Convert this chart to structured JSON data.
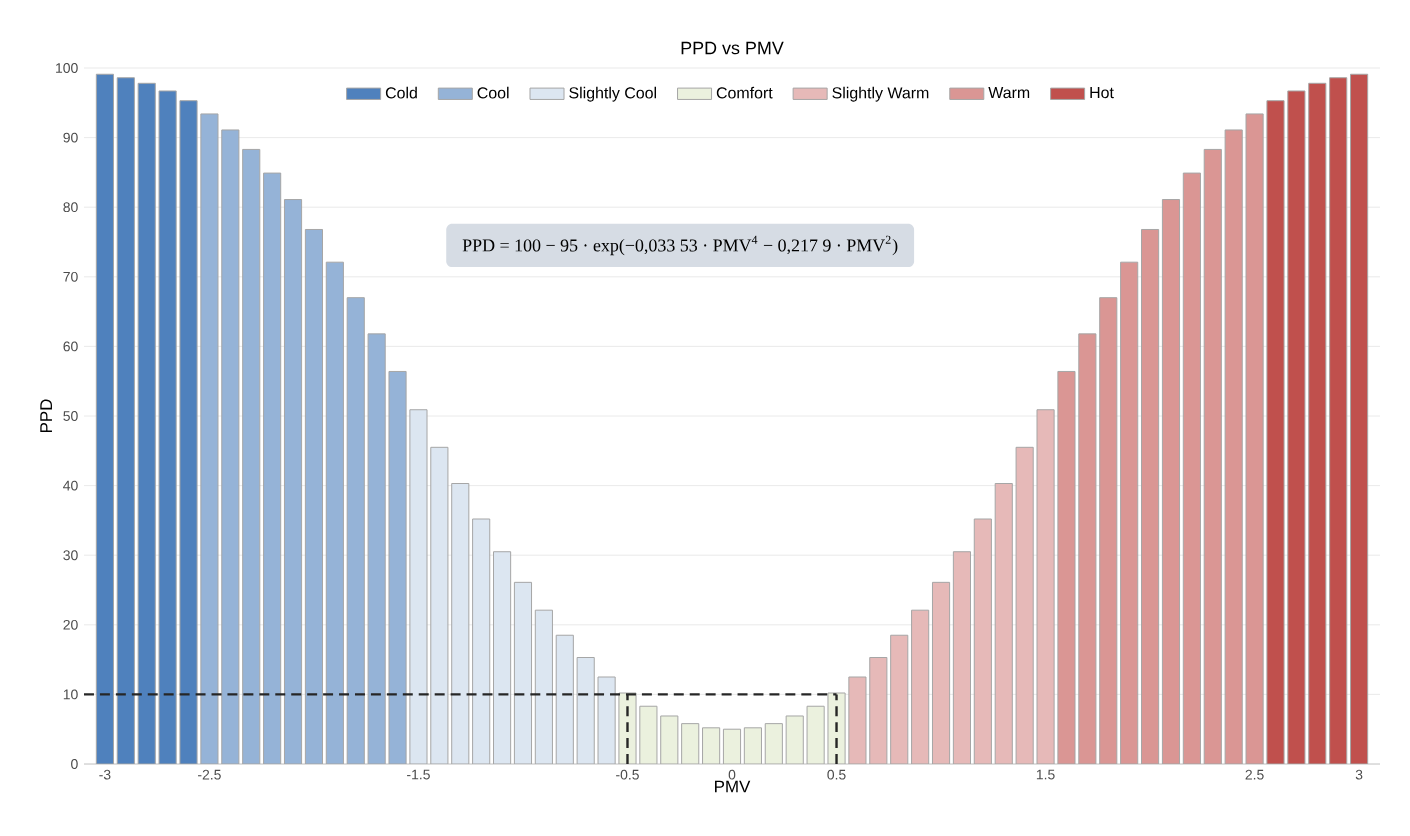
{
  "chart_data": {
    "type": "bar",
    "title": "PPD vs PMV",
    "xlabel": "PMV",
    "ylabel": "PPD",
    "annotations": [
      "PPD = 100 − 95 · exp(−0,033 53 · PMV$^{4}$ − 0,217 9 · PMV$^{2}$)"
    ],
    "series": [
      {
        "name": "Cold",
        "color": "#4f81bd",
        "x": [
          -3.0,
          -2.9,
          -2.8,
          -2.7,
          -2.6
        ],
        "values": [
          99.1,
          98.6,
          97.8,
          96.7,
          95.3
        ]
      },
      {
        "name": "Cool",
        "color": "#95b3d7",
        "x": [
          -2.5,
          -2.4,
          -2.3,
          -2.2,
          -2.1,
          -2.0,
          -1.9,
          -1.8,
          -1.7,
          -1.6
        ],
        "values": [
          93.4,
          91.1,
          88.3,
          84.9,
          81.1,
          76.8,
          72.1,
          67.0,
          61.8,
          56.4
        ]
      },
      {
        "name": "Slightly Cool",
        "color": "#dce6f1",
        "x": [
          -1.5,
          -1.4,
          -1.3,
          -1.2,
          -1.1,
          -1.0,
          -0.9,
          -0.8,
          -0.7,
          -0.6
        ],
        "values": [
          50.9,
          45.5,
          40.3,
          35.2,
          30.5,
          26.1,
          22.1,
          18.5,
          15.3,
          12.5
        ]
      },
      {
        "name": "Comfort",
        "color": "#ebf1de",
        "x": [
          -0.5,
          -0.4,
          -0.3,
          -0.2,
          -0.1,
          0.0,
          0.1,
          0.2,
          0.3,
          0.4,
          0.5
        ],
        "values": [
          10.2,
          8.3,
          6.9,
          5.8,
          5.2,
          5.0,
          5.2,
          5.8,
          6.9,
          8.3,
          10.2
        ]
      },
      {
        "name": "Slightly Warm",
        "color": "#e6b9b8",
        "x": [
          0.6,
          0.7,
          0.8,
          0.9,
          1.0,
          1.1,
          1.2,
          1.3,
          1.4,
          1.5
        ],
        "values": [
          12.5,
          15.3,
          18.5,
          22.1,
          26.1,
          30.5,
          35.2,
          40.3,
          45.5,
          50.9
        ]
      },
      {
        "name": "Warm",
        "color": "#da9694",
        "x": [
          1.6,
          1.7,
          1.8,
          1.9,
          2.0,
          2.1,
          2.2,
          2.3,
          2.4,
          2.5
        ],
        "values": [
          56.4,
          61.8,
          67.0,
          72.1,
          76.8,
          81.1,
          84.9,
          88.3,
          91.1,
          93.4
        ]
      },
      {
        "name": "Hot",
        "color": "#c0504d",
        "x": [
          2.6,
          2.7,
          2.8,
          2.9,
          3.0
        ],
        "values": [
          95.3,
          96.7,
          97.8,
          98.6,
          99.1
        ]
      }
    ],
    "xlim": [
      -3.1,
      3.1
    ],
    "xticks": [
      -3,
      -2.5,
      -1.5,
      -0.5,
      0,
      0.5,
      1.5,
      2.5,
      3
    ],
    "ylim": [
      0,
      100
    ],
    "yticks": [
      0,
      10,
      20,
      30,
      40,
      50,
      60,
      70,
      80,
      90,
      100
    ],
    "ref_lines": [
      {
        "axis": "y",
        "value": 10,
        "color": "#262626",
        "line_style": "dashed"
      },
      {
        "axis": "x",
        "value": -0.5,
        "color": "#262626",
        "line_style": "dashed"
      },
      {
        "axis": "x",
        "value": 0.5,
        "color": "#262626",
        "line_style": "dashed"
      }
    ],
    "grid": "y",
    "legend": "top"
  }
}
